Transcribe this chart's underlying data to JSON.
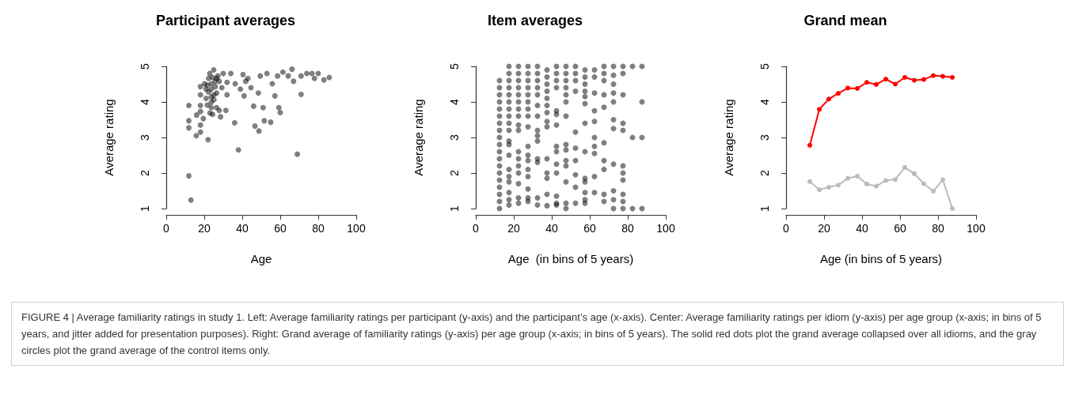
{
  "chart_data": [
    {
      "type": "scatter",
      "title": "Participant averages",
      "xlabel": "Age",
      "ylabel": "Average rating",
      "xlim": [
        0,
        100
      ],
      "xticks": [
        0,
        20,
        40,
        60,
        80,
        100
      ],
      "ylim": [
        1,
        5
      ],
      "yticks": [
        1,
        2,
        3,
        4,
        5
      ],
      "grid": false,
      "marker": "circle",
      "annotations": [
        "FIGURE 4 | Average familiarity ratings in study 1. Left: Average familiarity ratings per participant (y-axis) and the participant’s age (x-axis). Center: Average familiarity ratings per idiom (y-axis) per age group (x-axis; in bins of 5 years, and jitter added for presentation purposes). Right: Grand average of familiarity ratings (y-axis) per age group (x-axis; in bins of 5 years). The solid red dots plot the grand average collapsed over all idioms, and the gray circles plot the grand average of the control items only."
      ],
      "series": [
        {
          "color": "#000000",
          "x": [
            11.9,
            11.9,
            11.9,
            11.9,
            13,
            16,
            15.8,
            18,
            18,
            18,
            18,
            18,
            18,
            19.5,
            22,
            21,
            21.6,
            22.3,
            22.9,
            23.7,
            23.7,
            23.7,
            24.4,
            25,
            25.8,
            25.1,
            26.5,
            26.5,
            27.9,
            28.6,
            29.3,
            30,
            31.4,
            32,
            32,
            34,
            36,
            36.3,
            38,
            39,
            40.4,
            41,
            41.8,
            43,
            44.6,
            46,
            46.7,
            48.8,
            48.5,
            49.5,
            51,
            51.6,
            53,
            55,
            55.8,
            57.2,
            58.6,
            59.3,
            60,
            61.4,
            64.2,
            66.2,
            67,
            69,
            71,
            71,
            74,
            76.7,
            78,
            80,
            83,
            85.8,
            20.9,
            22.3,
            23.7,
            24.4,
            25.8,
            27.2,
            21.6,
            23,
            25.1,
            26.5,
            27.9,
            23.7,
            20.2
          ],
          "values": [
            3.9,
            3.47,
            3.27,
            1.92,
            1.24,
            3.63,
            3.05,
            3.15,
            3.35,
            3.73,
            3.9,
            4.2,
            4.43,
            3.53,
            2.94,
            4.1,
            4.47,
            4.66,
            4.8,
            4.36,
            3.99,
            3.84,
            3.65,
            4.9,
            4.58,
            4.2,
            3.84,
            4.66,
            3.76,
            3.58,
            4.4,
            4.8,
            3.76,
            4.2,
            4.55,
            4.8,
            3.41,
            4.51,
            2.65,
            4.36,
            4.77,
            4.17,
            4.58,
            4.66,
            4.4,
            3.88,
            3.32,
            3.18,
            4.25,
            4.73,
            3.84,
            3.47,
            4.8,
            3.43,
            4.51,
            4.17,
            4.73,
            3.84,
            3.7,
            4.84,
            4.73,
            4.92,
            4.58,
            2.53,
            4.21,
            4.73,
            4.8,
            4.8,
            4.66,
            4.8,
            4.62,
            4.69,
            4.36,
            4.28,
            4.51,
            4.69,
            4.43,
            4.73,
            3.91,
            3.69,
            4.06,
            4.25,
            4.58,
            4.14,
            4.51
          ]
        }
      ]
    },
    {
      "type": "scatter",
      "title": "Item averages",
      "xlabel": "Age  (in bins of 5 years)",
      "ylabel": "Average rating",
      "xlim": [
        0,
        100
      ],
      "xticks": [
        0,
        20,
        40,
        60,
        80,
        100
      ],
      "ylim": [
        1,
        5
      ],
      "yticks": [
        1,
        2,
        3,
        4,
        5
      ],
      "grid": false,
      "marker": "circle",
      "series": [
        {
          "color": "#000000",
          "x": [
            12.5,
            12.5,
            12.5,
            12.5,
            12.5,
            12.5,
            12.5,
            12.5,
            12.5,
            12.5,
            12.5,
            12.5,
            12.5,
            12.5,
            12.5,
            12.5,
            12.5,
            12.5,
            12.5,
            17.5,
            17.5,
            17.5,
            17.5,
            17.5,
            17.5,
            17.5,
            17.5,
            17.5,
            17.5,
            17.5,
            17.5,
            17.5,
            17.5,
            17.5,
            17.5,
            17.5,
            17.5,
            17.5,
            22.5,
            22.5,
            22.5,
            22.5,
            22.5,
            22.5,
            22.5,
            22.5,
            22.5,
            22.5,
            22.5,
            22.5,
            22.5,
            22.5,
            22.5,
            22.5,
            22.5,
            27.5,
            27.5,
            27.5,
            27.5,
            27.5,
            27.5,
            27.5,
            27.5,
            27.5,
            27.5,
            27.5,
            27.5,
            27.5,
            27.5,
            27.5,
            27.5,
            27.5,
            32.5,
            32.5,
            32.5,
            32.5,
            32.5,
            32.5,
            32.5,
            32.5,
            32.5,
            32.5,
            32.5,
            32.5,
            32.5,
            32.5,
            37.5,
            37.5,
            37.5,
            37.5,
            37.5,
            37.5,
            37.5,
            37.5,
            37.5,
            37.5,
            37.5,
            37.5,
            37.5,
            37.5,
            42.5,
            42.5,
            42.5,
            42.5,
            42.5,
            42.5,
            42.5,
            42.5,
            42.5,
            42.5,
            42.5,
            42.5,
            42.5,
            42.5,
            47.5,
            47.5,
            47.5,
            47.5,
            47.5,
            47.5,
            47.5,
            47.5,
            47.5,
            47.5,
            47.5,
            47.5,
            47.5,
            47.5,
            52.5,
            52.5,
            52.5,
            52.5,
            52.5,
            52.5,
            52.5,
            52.5,
            52.5,
            52.5,
            57.5,
            57.5,
            57.5,
            57.5,
            57.5,
            57.5,
            57.5,
            57.5,
            57.5,
            57.5,
            57.5,
            57.5,
            57.5,
            62.5,
            62.5,
            62.5,
            62.5,
            62.5,
            62.5,
            62.5,
            62.5,
            62.5,
            62.5,
            67.5,
            67.5,
            67.5,
            67.5,
            67.5,
            67.5,
            67.5,
            67.5,
            67.5,
            67.5,
            72.5,
            72.5,
            72.5,
            72.5,
            72.5,
            72.5,
            72.5,
            72.5,
            72.5,
            72.5,
            72.5,
            77.5,
            77.5,
            77.5,
            77.5,
            77.5,
            77.5,
            77.5,
            77.5,
            77.5,
            77.5,
            77.5,
            82.5,
            82.5,
            82.5,
            87.5,
            87.5,
            87.5,
            87.5
          ],
          "values": [
            1.0,
            1.2,
            1.4,
            1.6,
            1.8,
            2.0,
            2.2,
            2.4,
            2.6,
            2.8,
            3.0,
            3.2,
            3.4,
            3.6,
            3.8,
            4.0,
            4.2,
            4.4,
            4.6,
            5.0,
            4.8,
            4.6,
            4.4,
            4.2,
            4.0,
            3.8,
            3.6,
            3.4,
            3.2,
            2.9,
            2.8,
            2.5,
            2.1,
            1.9,
            1.75,
            1.45,
            1.25,
            1.1,
            5.0,
            4.8,
            4.6,
            4.4,
            4.2,
            4.0,
            3.8,
            3.6,
            3.35,
            3.2,
            2.6,
            2.4,
            2.2,
            2.0,
            1.7,
            1.3,
            1.15,
            5.0,
            4.8,
            4.6,
            4.4,
            4.2,
            4.0,
            3.8,
            3.6,
            3.3,
            2.75,
            2.5,
            2.35,
            2.1,
            1.9,
            1.55,
            1.3,
            1.2,
            5.0,
            4.8,
            4.6,
            4.4,
            4.2,
            3.9,
            3.6,
            3.2,
            3.05,
            2.9,
            2.4,
            2.3,
            1.3,
            1.1,
            4.9,
            4.7,
            4.5,
            4.3,
            4.1,
            3.9,
            3.7,
            3.45,
            3.3,
            2.4,
            2.0,
            1.85,
            1.4,
            1.08,
            5.0,
            4.8,
            4.6,
            4.4,
            3.75,
            3.65,
            3.35,
            2.75,
            2.6,
            2.25,
            2.0,
            1.35,
            1.15,
            1.1,
            5.0,
            4.8,
            4.6,
            4.4,
            4.2,
            4.0,
            3.6,
            2.8,
            2.65,
            2.35,
            2.2,
            1.75,
            1.15,
            1.0,
            5.0,
            4.8,
            4.6,
            4.3,
            3.15,
            2.7,
            2.35,
            1.95,
            1.6,
            1.15,
            4.9,
            4.7,
            4.5,
            4.3,
            4.15,
            3.95,
            3.4,
            2.6,
            1.85,
            1.75,
            1.45,
            1.25,
            1.15,
            4.9,
            4.7,
            4.25,
            3.75,
            3.45,
            3.0,
            2.75,
            2.55,
            1.9,
            1.45,
            5.0,
            4.8,
            4.6,
            4.2,
            3.85,
            2.85,
            2.35,
            2.1,
            1.4,
            1.2,
            5.0,
            4.75,
            4.5,
            4.25,
            4.0,
            3.5,
            3.25,
            2.25,
            1.5,
            1.25,
            1.0,
            5.0,
            4.8,
            4.2,
            3.4,
            3.2,
            2.2,
            2.0,
            1.8,
            1.4,
            1.2,
            1.0,
            5.0,
            3.0,
            1.0,
            5.0,
            4.0,
            3.0,
            1.0
          ]
        }
      ]
    },
    {
      "type": "line",
      "title": "Grand mean",
      "xlabel": "Age (in bins of 5 years)",
      "ylabel": "Average rating",
      "xlim": [
        0,
        100
      ],
      "xticks": [
        0,
        20,
        40,
        60,
        80,
        100
      ],
      "ylim": [
        1,
        5
      ],
      "yticks": [
        1,
        2,
        3,
        4,
        5
      ],
      "grid": false,
      "marker": "circle",
      "line_style": "solid",
      "x": [
        12.5,
        17.5,
        22.5,
        27.5,
        32.5,
        37.5,
        42.5,
        47.5,
        52.5,
        57.5,
        62.5,
        67.5,
        72.5,
        77.5,
        82.5,
        87.5
      ],
      "series": [
        {
          "color": "#ff0000",
          "values": [
            2.78,
            3.79,
            4.08,
            4.24,
            4.39,
            4.38,
            4.55,
            4.49,
            4.64,
            4.5,
            4.69,
            4.61,
            4.63,
            4.74,
            4.72,
            4.69
          ]
        },
        {
          "color": "#bbbbbb",
          "values": [
            1.76,
            1.53,
            1.6,
            1.66,
            1.85,
            1.91,
            1.69,
            1.63,
            1.79,
            1.82,
            2.16,
            1.98,
            1.7,
            1.49,
            1.81,
            1.0
          ]
        }
      ]
    }
  ]
}
